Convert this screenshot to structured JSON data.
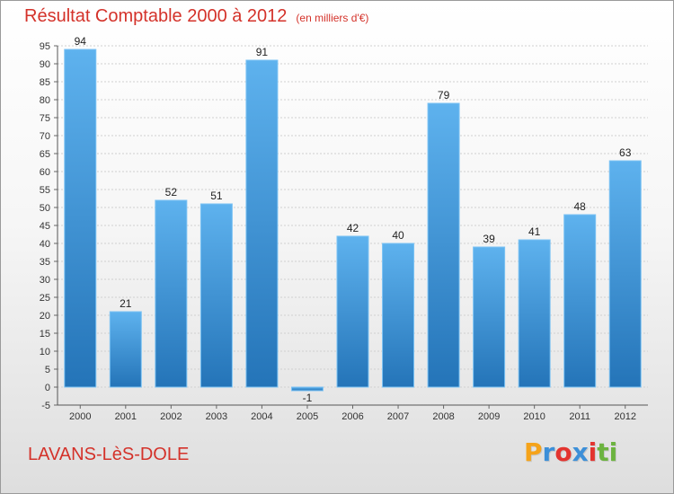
{
  "header": {
    "title": "Résultat Comptable 2000 à 2012",
    "subtitle": "(en milliers d'€)"
  },
  "footer": {
    "place": "LAVANS-LèS-DOLE",
    "logo_letters": [
      {
        "ch": "P",
        "color": "#f5a31a"
      },
      {
        "ch": "r",
        "color": "#3c8fd8"
      },
      {
        "ch": "o",
        "color": "#e3342f"
      },
      {
        "ch": "x",
        "color": "#3c8fd8"
      },
      {
        "ch": "i",
        "color": "#e3342f"
      },
      {
        "ch": "t",
        "color": "#6cb33f"
      },
      {
        "ch": "i",
        "color": "#6cb33f"
      }
    ]
  },
  "chart_data": {
    "type": "bar",
    "title": "Résultat Comptable 2000 à 2012",
    "subtitle": "(en milliers d'€)",
    "categories": [
      "2000",
      "2001",
      "2002",
      "2003",
      "2004",
      "2005",
      "2006",
      "2007",
      "2008",
      "2009",
      "2010",
      "2011",
      "2012"
    ],
    "values": [
      94,
      21,
      52,
      51,
      91,
      -1,
      42,
      40,
      79,
      39,
      41,
      48,
      63
    ],
    "ylim": [
      -5,
      95
    ],
    "ytick_step": 5,
    "grid": true,
    "bar_color": "#3f94d6",
    "bar_color_light": "#5eb2ee",
    "bar_color_dark": "#2474b8"
  }
}
